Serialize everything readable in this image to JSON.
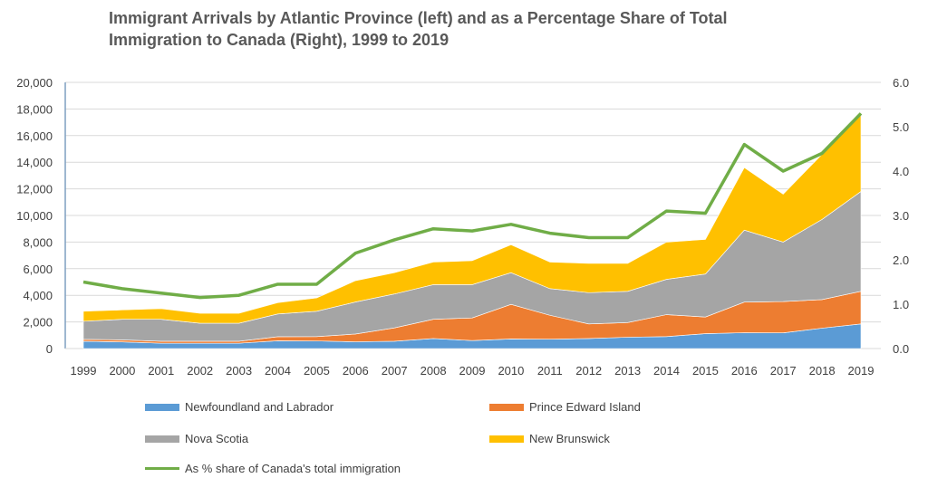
{
  "chart_data": {
    "type": "area",
    "stacked": true,
    "title": "Immigrant Arrivals by Atlantic Province (left) and as a Percentage Share of Total Immigration to Canada (Right), 1999 to 2019",
    "title_lines": [
      "Immigrant Arrivals by Atlantic Province (left) and as a Percentage Share of Total",
      "Immigration to Canada (Right), 1999 to 2019"
    ],
    "categories": [
      "1999",
      "2000",
      "2001",
      "2002",
      "2003",
      "2004",
      "2005",
      "2006",
      "2007",
      "2008",
      "2009",
      "2010",
      "2011",
      "2012",
      "2013",
      "2014",
      "2015",
      "2016",
      "2017",
      "2018",
      "2019"
    ],
    "series": [
      {
        "name": "Newfoundland and Labrador",
        "color": "#5B9BD5",
        "values": [
          550,
          500,
          400,
          400,
          400,
          580,
          570,
          510,
          550,
          750,
          600,
          720,
          700,
          750,
          850,
          900,
          1120,
          1190,
          1180,
          1530,
          1850
        ]
      },
      {
        "name": "Prince Edward Island",
        "color": "#ED7D31",
        "values": [
          140,
          150,
          150,
          150,
          150,
          310,
          330,
          580,
          1000,
          1450,
          1700,
          2600,
          1800,
          1100,
          1100,
          1650,
          1250,
          2300,
          2350,
          2150,
          2450
        ]
      },
      {
        "name": "Nova Scotia",
        "color": "#A5A5A5",
        "values": [
          1360,
          1550,
          1650,
          1350,
          1350,
          1710,
          1900,
          2410,
          2550,
          2600,
          2500,
          2380,
          2000,
          2350,
          2350,
          2650,
          3230,
          5410,
          4470,
          6020,
          7500
        ]
      },
      {
        "name": "New Brunswick",
        "color": "#FFC000",
        "values": [
          750,
          700,
          800,
          750,
          750,
          850,
          1000,
          1600,
          1600,
          1700,
          1800,
          2100,
          2000,
          2200,
          2100,
          2800,
          2600,
          4700,
          3600,
          4900,
          5800
        ]
      }
    ],
    "line_series": {
      "name": "As % share of Canada's total immigration",
      "color": "#70AD47",
      "axis": "right",
      "values": [
        1.5,
        1.35,
        1.25,
        1.15,
        1.2,
        1.45,
        1.45,
        2.15,
        2.45,
        2.7,
        2.65,
        2.8,
        2.6,
        2.5,
        2.5,
        3.1,
        3.05,
        4.6,
        4.0,
        4.4,
        5.3
      ]
    },
    "ylim": [
      0,
      20000
    ],
    "y_ticks": [
      "0",
      "2,000",
      "4,000",
      "6,000",
      "8,000",
      "10,000",
      "12,000",
      "14,000",
      "16,000",
      "18,000",
      "20,000"
    ],
    "y2lim": [
      0,
      6.0
    ],
    "y2_ticks": [
      "0.0",
      "1.0",
      "2.0",
      "3.0",
      "4.0",
      "5.0",
      "6.0"
    ],
    "grid": true,
    "legend_position": "bottom"
  }
}
